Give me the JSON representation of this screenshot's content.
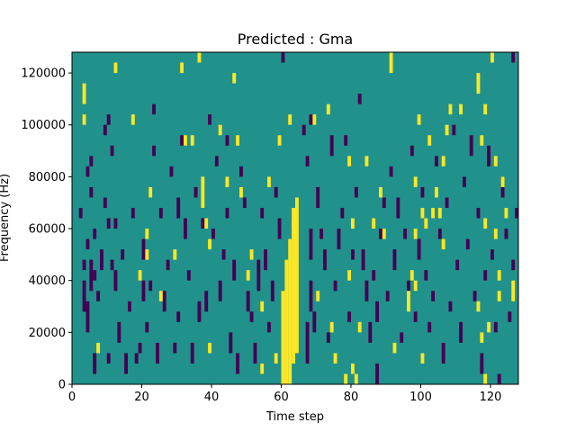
{
  "chart_data": {
    "type": "heatmap",
    "title": "Predicted : Gma",
    "xlabel": "Time step",
    "ylabel": "Frequency (Hz)",
    "xlim": [
      0,
      128
    ],
    "ylim": [
      0,
      128000
    ],
    "x_ticks": [
      0,
      20,
      40,
      60,
      80,
      100,
      120
    ],
    "y_ticks": [
      0,
      20000,
      40000,
      60000,
      80000,
      100000,
      120000
    ],
    "x_tick_labels": [
      "0",
      "20",
      "40",
      "60",
      "80",
      "100",
      "120"
    ],
    "y_tick_labels": [
      "0",
      "20000",
      "40000",
      "60000",
      "80000",
      "100000",
      "120000"
    ],
    "colors": {
      "background": "#21918c",
      "low": "#440154",
      "high": "#fde725"
    },
    "row_height_hz": 4000,
    "cells_high": [
      [
        3,
        108000,
        116000
      ],
      [
        3,
        100000,
        104000
      ],
      [
        7,
        12000,
        16000
      ],
      [
        12,
        120000,
        124000
      ],
      [
        17,
        100000,
        104000
      ],
      [
        19,
        40000,
        44000
      ],
      [
        21,
        48000,
        52000
      ],
      [
        21,
        56000,
        60000
      ],
      [
        22,
        72000,
        76000
      ],
      [
        25,
        32000,
        36000
      ],
      [
        29,
        48000,
        52000
      ],
      [
        31,
        120000,
        124000
      ],
      [
        32,
        92000,
        96000
      ],
      [
        34,
        92000,
        96000
      ],
      [
        36,
        124000,
        128000
      ],
      [
        37,
        68000,
        80000
      ],
      [
        38,
        60000,
        64000
      ],
      [
        39,
        52000,
        56000
      ],
      [
        39,
        12000,
        16000
      ],
      [
        42,
        96000,
        100000
      ],
      [
        44,
        76000,
        80000
      ],
      [
        46,
        116000,
        120000
      ],
      [
        47,
        92000,
        96000
      ],
      [
        48,
        72000,
        76000
      ],
      [
        50,
        40000,
        44000
      ],
      [
        51,
        48000,
        52000
      ],
      [
        54,
        28000,
        32000
      ],
      [
        54,
        4000,
        8000
      ],
      [
        56,
        76000,
        80000
      ],
      [
        58,
        8000,
        12000
      ],
      [
        59,
        92000,
        96000
      ],
      [
        60,
        0,
        36000
      ],
      [
        61,
        0,
        48000
      ],
      [
        62,
        0,
        56000
      ],
      [
        63,
        8000,
        68000
      ],
      [
        64,
        12000,
        72000
      ],
      [
        62,
        100000,
        104000
      ],
      [
        63,
        60000,
        64000
      ],
      [
        69,
        100000,
        104000
      ],
      [
        70,
        32000,
        36000
      ],
      [
        73,
        104000,
        108000
      ],
      [
        74,
        20000,
        24000
      ],
      [
        75,
        8000,
        12000
      ],
      [
        78,
        0,
        4000
      ],
      [
        79,
        40000,
        44000
      ],
      [
        80,
        4000,
        8000
      ],
      [
        80,
        60000,
        64000
      ],
      [
        79,
        84000,
        88000
      ],
      [
        81,
        0,
        4000
      ],
      [
        82,
        20000,
        24000
      ],
      [
        84,
        84000,
        88000
      ],
      [
        86,
        60000,
        64000
      ],
      [
        88,
        72000,
        76000
      ],
      [
        89,
        56000,
        60000
      ],
      [
        91,
        120000,
        128000
      ],
      [
        92,
        12000,
        16000
      ],
      [
        96,
        28000,
        36000
      ],
      [
        97,
        40000,
        44000
      ],
      [
        98,
        36000,
        40000
      ],
      [
        98,
        56000,
        60000
      ],
      [
        98,
        76000,
        80000
      ],
      [
        99,
        100000,
        104000
      ],
      [
        100,
        8000,
        12000
      ],
      [
        100,
        64000,
        68000
      ],
      [
        101,
        60000,
        64000
      ],
      [
        102,
        92000,
        96000
      ],
      [
        103,
        64000,
        68000
      ],
      [
        104,
        72000,
        76000
      ],
      [
        105,
        64000,
        68000
      ],
      [
        106,
        52000,
        56000
      ],
      [
        106,
        84000,
        88000
      ],
      [
        107,
        96000,
        100000
      ],
      [
        108,
        104000,
        108000
      ],
      [
        111,
        104000,
        108000
      ],
      [
        116,
        112000,
        120000
      ],
      [
        116,
        28000,
        32000
      ],
      [
        117,
        16000,
        20000
      ],
      [
        117,
        92000,
        96000
      ],
      [
        118,
        0,
        4000
      ],
      [
        118,
        104000,
        108000
      ],
      [
        118,
        60000,
        64000
      ],
      [
        119,
        20000,
        24000
      ],
      [
        120,
        124000,
        128000
      ],
      [
        121,
        56000,
        60000
      ],
      [
        121,
        84000,
        88000
      ],
      [
        122,
        32000,
        36000
      ],
      [
        122,
        40000,
        44000
      ],
      [
        123,
        76000,
        80000
      ],
      [
        124,
        64000,
        68000
      ],
      [
        126,
        32000,
        40000
      ]
    ],
    "cells_low": [
      [
        2,
        64000,
        68000
      ],
      [
        3,
        28000,
        40000
      ],
      [
        3,
        44000,
        48000
      ],
      [
        4,
        20000,
        32000
      ],
      [
        4,
        52000,
        56000
      ],
      [
        4,
        80000,
        84000
      ],
      [
        5,
        36000,
        48000
      ],
      [
        5,
        72000,
        76000
      ],
      [
        5,
        84000,
        88000
      ],
      [
        6,
        4000,
        12000
      ],
      [
        6,
        40000,
        44000
      ],
      [
        6,
        56000,
        60000
      ],
      [
        7,
        32000,
        36000
      ],
      [
        8,
        44000,
        52000
      ],
      [
        9,
        68000,
        72000
      ],
      [
        9,
        96000,
        100000
      ],
      [
        10,
        8000,
        12000
      ],
      [
        10,
        60000,
        64000
      ],
      [
        10,
        100000,
        104000
      ],
      [
        11,
        44000,
        48000
      ],
      [
        11,
        88000,
        92000
      ],
      [
        12,
        36000,
        44000
      ],
      [
        12,
        60000,
        64000
      ],
      [
        13,
        16000,
        24000
      ],
      [
        14,
        48000,
        52000
      ],
      [
        15,
        4000,
        12000
      ],
      [
        16,
        28000,
        32000
      ],
      [
        17,
        64000,
        68000
      ],
      [
        18,
        8000,
        12000
      ],
      [
        19,
        12000,
        16000
      ],
      [
        20,
        32000,
        40000
      ],
      [
        20,
        48000,
        56000
      ],
      [
        21,
        20000,
        24000
      ],
      [
        22,
        36000,
        40000
      ],
      [
        23,
        88000,
        92000
      ],
      [
        23,
        104000,
        108000
      ],
      [
        24,
        8000,
        16000
      ],
      [
        25,
        64000,
        68000
      ],
      [
        26,
        28000,
        36000
      ],
      [
        27,
        44000,
        48000
      ],
      [
        28,
        80000,
        84000
      ],
      [
        29,
        12000,
        16000
      ],
      [
        30,
        64000,
        72000
      ],
      [
        30,
        24000,
        28000
      ],
      [
        31,
        92000,
        96000
      ],
      [
        32,
        56000,
        64000
      ],
      [
        33,
        40000,
        44000
      ],
      [
        34,
        8000,
        16000
      ],
      [
        35,
        72000,
        76000
      ],
      [
        36,
        24000,
        32000
      ],
      [
        37,
        60000,
        64000
      ],
      [
        38,
        28000,
        36000
      ],
      [
        39,
        100000,
        104000
      ],
      [
        40,
        56000,
        60000
      ],
      [
        41,
        84000,
        88000
      ],
      [
        42,
        32000,
        40000
      ],
      [
        43,
        48000,
        52000
      ],
      [
        44,
        64000,
        68000
      ],
      [
        44,
        92000,
        96000
      ],
      [
        45,
        12000,
        20000
      ],
      [
        46,
        40000,
        48000
      ],
      [
        47,
        4000,
        12000
      ],
      [
        48,
        80000,
        84000
      ],
      [
        49,
        68000,
        72000
      ],
      [
        50,
        28000,
        36000
      ],
      [
        51,
        24000,
        28000
      ],
      [
        52,
        8000,
        16000
      ],
      [
        53,
        36000,
        48000
      ],
      [
        54,
        64000,
        68000
      ],
      [
        55,
        44000,
        52000
      ],
      [
        56,
        20000,
        24000
      ],
      [
        57,
        32000,
        40000
      ],
      [
        58,
        72000,
        76000
      ],
      [
        59,
        56000,
        64000
      ],
      [
        60,
        124000,
        128000
      ],
      [
        66,
        96000,
        100000
      ],
      [
        67,
        84000,
        88000
      ],
      [
        67,
        8000,
        24000
      ],
      [
        68,
        28000,
        40000
      ],
      [
        68,
        48000,
        60000
      ],
      [
        68,
        100000,
        104000
      ],
      [
        69,
        20000,
        28000
      ],
      [
        70,
        68000,
        76000
      ],
      [
        71,
        56000,
        60000
      ],
      [
        72,
        44000,
        52000
      ],
      [
        73,
        16000,
        20000
      ],
      [
        74,
        88000,
        96000
      ],
      [
        75,
        36000,
        40000
      ],
      [
        76,
        52000,
        60000
      ],
      [
        77,
        64000,
        68000
      ],
      [
        78,
        92000,
        96000
      ],
      [
        79,
        24000,
        28000
      ],
      [
        80,
        48000,
        52000
      ],
      [
        81,
        72000,
        76000
      ],
      [
        82,
        108000,
        112000
      ],
      [
        83,
        44000,
        52000
      ],
      [
        84,
        32000,
        40000
      ],
      [
        85,
        16000,
        24000
      ],
      [
        86,
        40000,
        44000
      ],
      [
        87,
        24000,
        32000
      ],
      [
        87,
        0,
        8000
      ],
      [
        88,
        56000,
        60000
      ],
      [
        89,
        68000,
        72000
      ],
      [
        90,
        32000,
        36000
      ],
      [
        91,
        80000,
        84000
      ],
      [
        92,
        44000,
        52000
      ],
      [
        93,
        64000,
        72000
      ],
      [
        94,
        16000,
        20000
      ],
      [
        95,
        56000,
        60000
      ],
      [
        96,
        36000,
        40000
      ],
      [
        97,
        88000,
        92000
      ],
      [
        98,
        24000,
        28000
      ],
      [
        99,
        48000,
        56000
      ],
      [
        100,
        72000,
        76000
      ],
      [
        101,
        40000,
        44000
      ],
      [
        102,
        20000,
        24000
      ],
      [
        103,
        32000,
        36000
      ],
      [
        104,
        84000,
        88000
      ],
      [
        105,
        56000,
        60000
      ],
      [
        106,
        8000,
        16000
      ],
      [
        107,
        68000,
        72000
      ],
      [
        108,
        28000,
        32000
      ],
      [
        109,
        96000,
        100000
      ],
      [
        110,
        44000,
        48000
      ],
      [
        111,
        16000,
        24000
      ],
      [
        112,
        76000,
        80000
      ],
      [
        113,
        52000,
        56000
      ],
      [
        114,
        88000,
        96000
      ],
      [
        115,
        32000,
        36000
      ],
      [
        116,
        64000,
        68000
      ],
      [
        117,
        4000,
        12000
      ],
      [
        118,
        40000,
        44000
      ],
      [
        119,
        84000,
        92000
      ],
      [
        120,
        48000,
        52000
      ],
      [
        121,
        20000,
        24000
      ],
      [
        122,
        0,
        4000
      ],
      [
        123,
        72000,
        80000
      ],
      [
        124,
        56000,
        60000
      ],
      [
        125,
        24000,
        28000
      ],
      [
        126,
        44000,
        48000
      ],
      [
        127,
        64000,
        68000
      ],
      [
        126,
        124000,
        128000
      ]
    ]
  }
}
